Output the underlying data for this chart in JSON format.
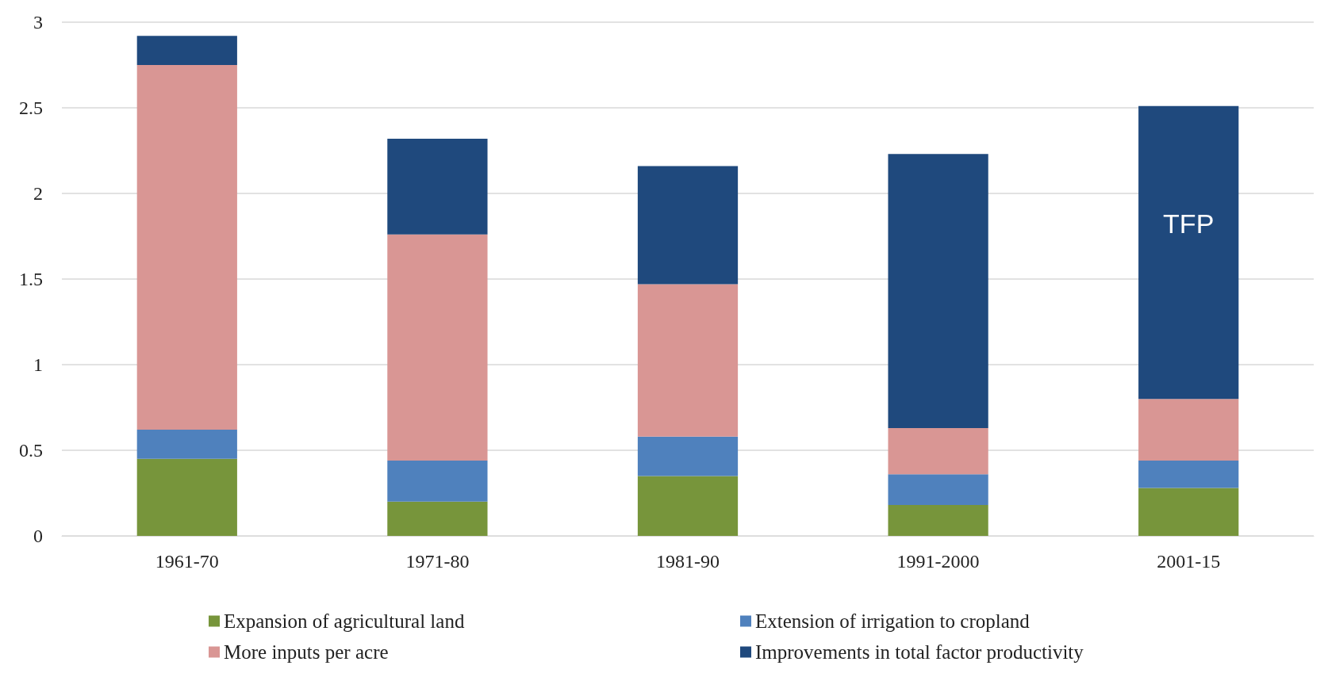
{
  "chart_data": {
    "type": "bar",
    "stacked": true,
    "categories": [
      "1961-70",
      "1971-80",
      "1981-90",
      "1991-2000",
      "2001-15"
    ],
    "series": [
      {
        "name": "Expansion of agricultural land",
        "color": "#77953b",
        "values": [
          0.45,
          0.2,
          0.35,
          0.18,
          0.28
        ]
      },
      {
        "name": "Extension of irrigation to cropland",
        "color": "#4f81bd",
        "values": [
          0.17,
          0.24,
          0.23,
          0.18,
          0.16
        ]
      },
      {
        "name": "More inputs per acre",
        "color": "#d99694",
        "values": [
          2.13,
          1.32,
          0.89,
          0.27,
          0.36
        ]
      },
      {
        "name": "Improvements in total factor productivity",
        "color": "#1f497d",
        "values": [
          0.17,
          0.56,
          0.69,
          1.6,
          1.71
        ]
      }
    ],
    "ylim": [
      0,
      3
    ],
    "yticks": [
      0,
      0.5,
      1,
      1.5,
      2,
      2.5,
      3
    ],
    "grid": "y",
    "legend": "bottom",
    "annotations": [
      "TFP"
    ]
  }
}
